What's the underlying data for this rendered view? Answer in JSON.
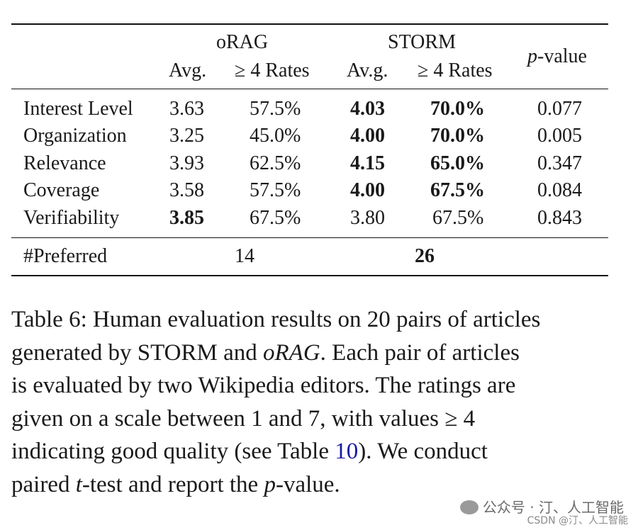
{
  "table": {
    "group_headers": {
      "orag": "oRAG",
      "storm": "STORM",
      "pvalue_italic": "p",
      "pvalue_rest": "-value"
    },
    "sub_headers": {
      "orag_avg": "Avg.",
      "orag_rates": "≥ 4 Rates",
      "storm_avg": "Av.g.",
      "storm_rates": "≥ 4 Rates"
    },
    "rows": [
      {
        "label": "Interest Level",
        "orag_avg": "3.63",
        "orag_rate": "57.5%",
        "storm_avg": "4.03",
        "storm_rate": "70.0%",
        "p": "0.077"
      },
      {
        "label": "Organization",
        "orag_avg": "3.25",
        "orag_rate": "45.0%",
        "storm_avg": "4.00",
        "storm_rate": "70.0%",
        "p": "0.005"
      },
      {
        "label": "Relevance",
        "orag_avg": "3.93",
        "orag_rate": "62.5%",
        "storm_avg": "4.15",
        "storm_rate": "65.0%",
        "p": "0.347"
      },
      {
        "label": "Coverage",
        "orag_avg": "3.58",
        "orag_rate": "57.5%",
        "storm_avg": "4.00",
        "storm_rate": "67.5%",
        "p": "0.084"
      },
      {
        "label": "Verifiability",
        "orag_avg": "3.85",
        "orag_rate": "67.5%",
        "storm_avg": "3.80",
        "storm_rate": "67.5%",
        "p": "0.843"
      }
    ],
    "preferred": {
      "label": "#Preferred",
      "orag": "14",
      "storm": "26"
    }
  },
  "caption": {
    "l1": "Table 6: Human evaluation results on 20 pairs of articles",
    "l2a": "generated by STORM and ",
    "l2b": "oRAG",
    "l2c": ". Each pair of articles",
    "l3": "is evaluated by two Wikipedia editors. The ratings are",
    "l4": "given on a scale between 1 and 7, with values ≥ 4",
    "l5a": "indicating good quality (see Table ",
    "l5b": "10",
    "l5c": "). We conduct",
    "l6a": "paired ",
    "l6b": "t",
    "l6c": "-test and report the ",
    "l6d": "p",
    "l6e": "-value."
  },
  "watermark": {
    "line1": "公众号 · 汀、人工智能",
    "line2": "CSDN @汀、人工智能"
  }
}
